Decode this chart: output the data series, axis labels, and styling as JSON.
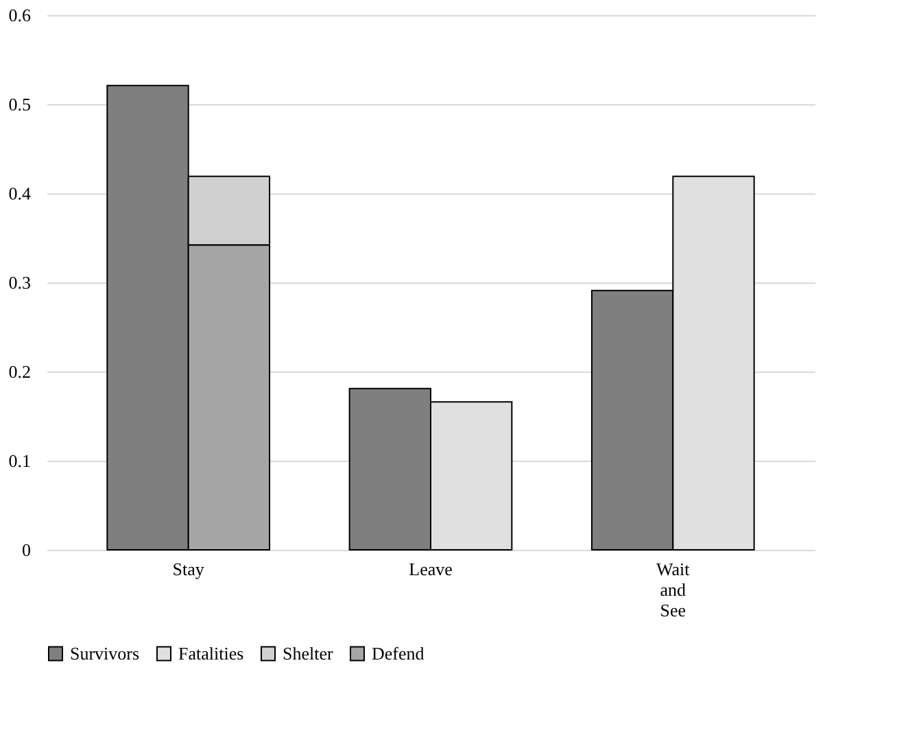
{
  "chart_data": {
    "type": "bar",
    "categories": [
      "Stay",
      "Leave",
      "Wait and See"
    ],
    "series": [
      {
        "name": "Survivors",
        "color": "#7f7f7f",
        "values": [
          0.521,
          0.181,
          0.291
        ]
      },
      {
        "name": "Fatalities",
        "color": "#e0e0e0",
        "values": [
          null,
          0.166,
          0.419
        ]
      },
      {
        "name": "Shelter",
        "color": "#d0d0d0",
        "values": [
          0.077,
          null,
          null
        ],
        "base": [
          0.342,
          null,
          null
        ]
      },
      {
        "name": "Defend",
        "color": "#a6a6a6",
        "values": [
          0.342,
          null,
          null
        ]
      }
    ],
    "ylim": [
      0,
      0.6
    ],
    "yticks": [
      0,
      0.1,
      0.2,
      0.3,
      0.4,
      0.5,
      0.6
    ],
    "grid": "y",
    "legend": "bottom"
  }
}
